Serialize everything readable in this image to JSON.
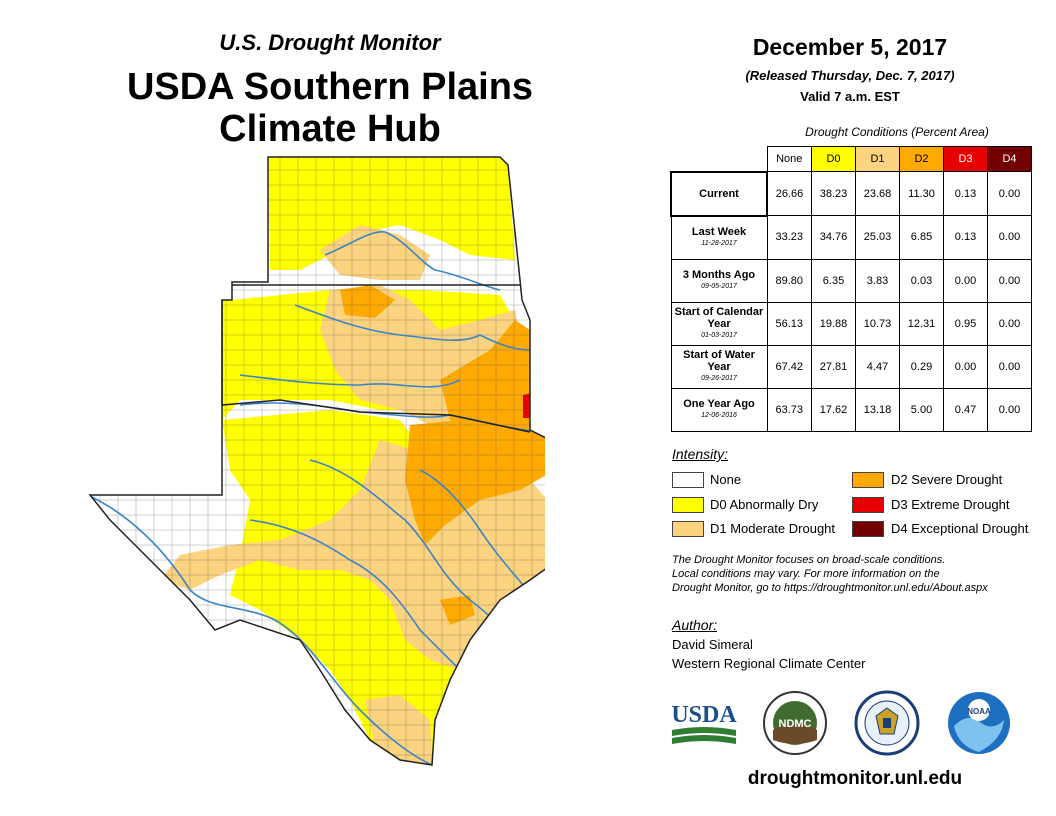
{
  "header": {
    "subtitle": "U.S. Drought Monitor",
    "title_line1": "USDA Southern Plains",
    "title_line2": "Climate Hub"
  },
  "info": {
    "date": "December 5, 2017",
    "released": "(Released Thursday, Dec. 7, 2017)",
    "valid": "Valid 7 a.m. EST"
  },
  "conditions": {
    "caption": "Drought Conditions (Percent Area)",
    "columns": [
      "None",
      "D0",
      "D1",
      "D2",
      "D3",
      "D4"
    ],
    "column_colors": [
      "#ffffff",
      "#ffff00",
      "#fcd37f",
      "#ffaa00",
      "#e60000",
      "#730000"
    ],
    "rows": [
      {
        "label": "Current",
        "sublabel": "",
        "values": [
          "26.66",
          "38.23",
          "23.68",
          "11.30",
          "0.13",
          "0.00"
        ]
      },
      {
        "label": "Last Week",
        "sublabel": "11-28-2017",
        "values": [
          "33.23",
          "34.76",
          "25.03",
          "6.85",
          "0.13",
          "0.00"
        ]
      },
      {
        "label": "3 Months Ago",
        "sublabel": "09-05-2017",
        "values": [
          "89.80",
          "6.35",
          "3.83",
          "0.03",
          "0.00",
          "0.00"
        ]
      },
      {
        "label": "Start of Calendar Year",
        "sublabel": "01-03-2017",
        "values": [
          "56.13",
          "19.88",
          "10.73",
          "12.31",
          "0.95",
          "0.00"
        ]
      },
      {
        "label": "Start of Water Year",
        "sublabel": "09-26-2017",
        "values": [
          "67.42",
          "27.81",
          "4.47",
          "0.29",
          "0.00",
          "0.00"
        ]
      },
      {
        "label": "One Year Ago",
        "sublabel": "12-06-2016",
        "values": [
          "63.73",
          "17.62",
          "13.18",
          "5.00",
          "0.47",
          "0.00"
        ]
      }
    ]
  },
  "legend": {
    "title": "Intensity:",
    "items": [
      {
        "label": "None",
        "color": "#ffffff"
      },
      {
        "label": "D0 Abnormally Dry",
        "color": "#ffff00"
      },
      {
        "label": "D1 Moderate Drought",
        "color": "#fcd37f"
      },
      {
        "label": "D2 Severe Drought",
        "color": "#ffaa00"
      },
      {
        "label": "D3 Extreme Drought",
        "color": "#e60000"
      },
      {
        "label": "D4 Exceptional Drought",
        "color": "#730000"
      }
    ]
  },
  "note": {
    "line1": "The Drought Monitor focuses on broad-scale conditions.",
    "line2": "Local conditions may vary. For more information on the",
    "line3": "Drought Monitor, go to https://droughtmonitor.unl.edu/About.aspx"
  },
  "author": {
    "title": "Author:",
    "name": "David Simeral",
    "org": "Western Regional Climate Center"
  },
  "logos": {
    "usda": "USDA",
    "ndmc": "NDMC",
    "noaa": "NOAA"
  },
  "website": "droughtmonitor.unl.edu"
}
